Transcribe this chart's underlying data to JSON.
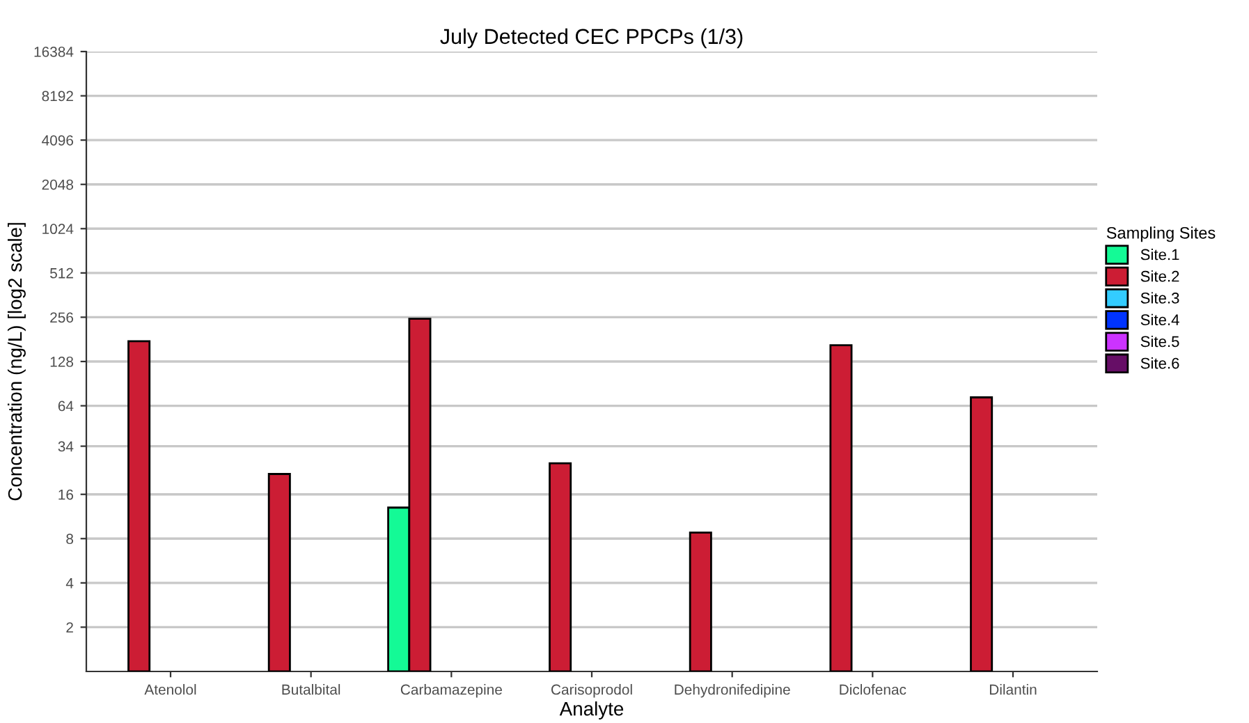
{
  "chart_data": {
    "type": "bar",
    "title": "July Detected CEC PPCPs (1/3)",
    "xlabel": "Analyte",
    "ylabel": "Concentration (ng/L) [log2 scale]",
    "legend_title": "Sampling Sites",
    "categories": [
      "Atenolol",
      "Butalbital",
      "Carbamazepine",
      "Carisoprodol",
      "Dehydronifedipine",
      "Diclofenac",
      "Dilantin"
    ],
    "series": [
      {
        "name": "Site.1",
        "color": "#14fa96",
        "values": [
          null,
          null,
          13,
          null,
          null,
          null,
          null
        ]
      },
      {
        "name": "Site.2",
        "color": "#cc1d34",
        "values": [
          176,
          22,
          250,
          26,
          8.8,
          165,
          73
        ]
      },
      {
        "name": "Site.3",
        "color": "#33ccff",
        "values": [
          null,
          null,
          null,
          null,
          null,
          null,
          null
        ]
      },
      {
        "name": "Site.4",
        "color": "#0033ff",
        "values": [
          null,
          null,
          null,
          null,
          null,
          null,
          null
        ]
      },
      {
        "name": "Site.5",
        "color": "#cc33ff",
        "values": [
          null,
          null,
          null,
          null,
          null,
          null,
          null
        ]
      },
      {
        "name": "Site.6",
        "color": "#660e66",
        "values": [
          null,
          null,
          null,
          null,
          null,
          null,
          null
        ]
      }
    ],
    "log": "y",
    "ylim": [
      1,
      16384
    ],
    "yticks": [
      2,
      4,
      8,
      {
        "value": 16,
        "label": "16"
      },
      34,
      64,
      128,
      256,
      512,
      1024,
      2048,
      4096,
      8192,
      16384
    ],
    "grid": "y",
    "legend": "right"
  }
}
